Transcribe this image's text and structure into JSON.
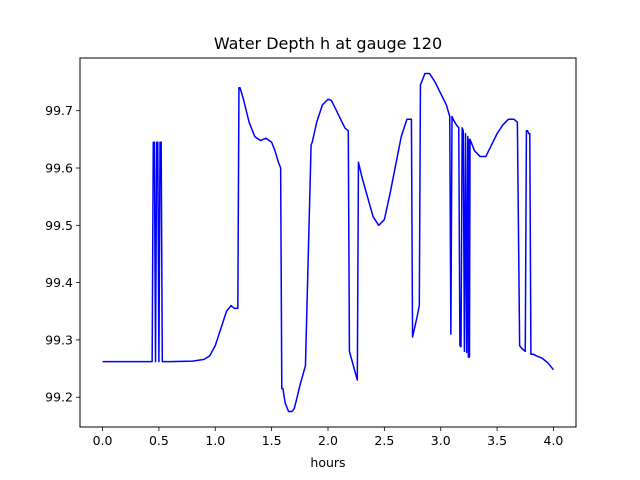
{
  "chart_data": {
    "type": "line",
    "title": "Water Depth h at gauge 120",
    "xlabel": "hours",
    "ylabel": "",
    "xlim": [
      -0.2,
      4.2
    ],
    "ylim": [
      99.148,
      99.792
    ],
    "xticks": [
      0.0,
      0.5,
      1.0,
      1.5,
      2.0,
      2.5,
      3.0,
      3.5,
      4.0
    ],
    "xtick_labels": [
      "0.0",
      "0.5",
      "1.0",
      "1.5",
      "2.0",
      "2.5",
      "3.0",
      "3.5",
      "4.0"
    ],
    "yticks": [
      99.2,
      99.3,
      99.4,
      99.5,
      99.6,
      99.7
    ],
    "ytick_labels": [
      "99.2",
      "99.3",
      "99.4",
      "99.5",
      "99.6",
      "99.7"
    ],
    "grid": false,
    "series": [
      {
        "color": "#0000ff",
        "x": [
          0.0,
          0.44,
          0.45,
          0.46,
          0.47,
          0.48,
          0.49,
          0.5,
          0.51,
          0.52,
          0.53,
          0.6,
          0.8,
          0.9,
          0.95,
          1.0,
          1.05,
          1.1,
          1.14,
          1.17,
          1.2,
          1.21,
          1.22,
          1.25,
          1.3,
          1.35,
          1.4,
          1.45,
          1.5,
          1.53,
          1.56,
          1.58,
          1.59,
          1.6,
          1.62,
          1.65,
          1.68,
          1.7,
          1.72,
          1.75,
          1.8,
          1.85,
          1.86,
          1.9,
          1.95,
          2.0,
          2.03,
          2.05,
          2.1,
          2.15,
          2.18,
          2.19,
          2.26,
          2.27,
          2.3,
          2.35,
          2.4,
          2.45,
          2.5,
          2.55,
          2.6,
          2.65,
          2.7,
          2.74,
          2.75,
          2.79,
          2.8,
          2.81,
          2.82,
          2.83,
          2.86,
          2.9,
          2.95,
          3.0,
          3.05,
          3.08,
          3.09,
          3.1,
          3.11,
          3.14,
          3.16,
          3.17,
          3.18,
          3.19,
          3.2,
          3.21,
          3.22,
          3.23,
          3.24,
          3.245,
          3.25,
          3.255,
          3.26,
          3.3,
          3.35,
          3.4,
          3.45,
          3.5,
          3.55,
          3.6,
          3.65,
          3.68,
          3.7,
          3.72,
          3.75,
          3.76,
          3.77,
          3.78,
          3.79,
          3.8,
          3.81,
          3.82,
          3.85,
          3.9,
          3.95,
          4.0
        ],
        "y": [
          99.262,
          99.262,
          99.645,
          99.645,
          99.262,
          99.645,
          99.645,
          99.262,
          99.645,
          99.645,
          99.262,
          99.262,
          99.263,
          99.266,
          99.272,
          99.29,
          99.32,
          99.35,
          99.36,
          99.355,
          99.355,
          99.74,
          99.74,
          99.72,
          99.68,
          99.655,
          99.648,
          99.652,
          99.645,
          99.63,
          99.61,
          99.6,
          99.215,
          99.215,
          99.19,
          99.175,
          99.175,
          99.18,
          99.195,
          99.22,
          99.255,
          99.64,
          99.645,
          99.68,
          99.71,
          99.72,
          99.718,
          99.71,
          99.69,
          99.67,
          99.665,
          99.28,
          99.23,
          99.61,
          99.585,
          99.55,
          99.515,
          99.5,
          99.51,
          99.555,
          99.605,
          99.655,
          99.685,
          99.685,
          99.305,
          99.34,
          99.35,
          99.36,
          99.745,
          99.75,
          99.765,
          99.765,
          99.75,
          99.73,
          99.71,
          99.69,
          99.31,
          99.69,
          99.685,
          99.675,
          99.67,
          99.29,
          99.288,
          99.67,
          99.665,
          99.28,
          99.66,
          99.278,
          99.655,
          99.27,
          99.65,
          99.27,
          99.65,
          99.63,
          99.62,
          99.62,
          99.64,
          99.66,
          99.675,
          99.685,
          99.685,
          99.68,
          99.29,
          99.285,
          99.28,
          99.665,
          99.665,
          99.66,
          99.66,
          99.275,
          99.275,
          99.275,
          99.272,
          99.268,
          99.26,
          99.248
        ]
      }
    ]
  }
}
